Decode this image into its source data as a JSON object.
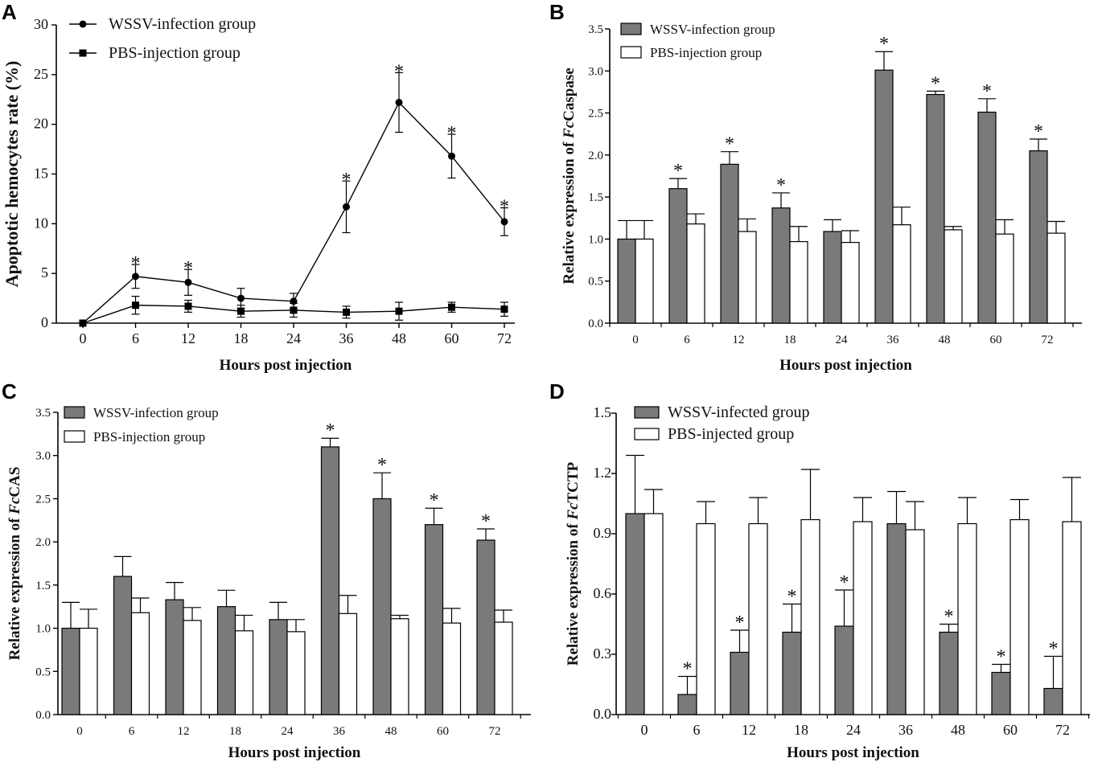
{
  "chart_data": [
    {
      "panel": "A",
      "type": "line",
      "categories": [
        "0",
        "6",
        "12",
        "18",
        "24",
        "36",
        "48",
        "60",
        "72"
      ],
      "series": [
        {
          "name": "WSSV-infection group",
          "marker": "circle",
          "values": [
            0,
            4.7,
            4.1,
            2.5,
            2.2,
            11.7,
            22.2,
            16.8,
            10.2
          ],
          "errors": [
            0,
            1.2,
            1.3,
            1.0,
            0.8,
            2.6,
            3.0,
            2.2,
            1.4
          ],
          "significant": [
            false,
            true,
            true,
            false,
            false,
            true,
            true,
            true,
            true
          ]
        },
        {
          "name": "PBS-injection group",
          "marker": "square",
          "values": [
            0,
            1.8,
            1.7,
            1.2,
            1.3,
            1.1,
            1.2,
            1.6,
            1.4
          ],
          "errors": [
            0,
            0.9,
            0.6,
            0.6,
            0.7,
            0.6,
            0.9,
            0.5,
            0.7
          ]
        }
      ],
      "title": "",
      "xlabel": "Hours post injection",
      "ylabel": "Apoptotic hemocytes rate (%)",
      "ylim": [
        0,
        30
      ],
      "yticks": [
        "0",
        "5",
        "10",
        "15",
        "20",
        "25",
        "30"
      ],
      "legend_position": "top-left",
      "grid": false
    },
    {
      "panel": "B",
      "type": "bar",
      "categories": [
        "0",
        "6",
        "12",
        "18",
        "24",
        "36",
        "48",
        "60",
        "72"
      ],
      "series": [
        {
          "name": "WSSV-infection group",
          "color": "#7a7a7a",
          "values": [
            1.0,
            1.6,
            1.89,
            1.37,
            1.09,
            3.01,
            2.72,
            2.51,
            2.05
          ],
          "errors": [
            0.22,
            0.12,
            0.15,
            0.18,
            0.14,
            0.22,
            0.04,
            0.16,
            0.14
          ],
          "significant": [
            false,
            true,
            true,
            true,
            false,
            true,
            true,
            true,
            true
          ]
        },
        {
          "name": "PBS-injection group",
          "color": "#ffffff",
          "values": [
            1.0,
            1.18,
            1.09,
            0.97,
            0.96,
            1.17,
            1.11,
            1.06,
            1.07
          ],
          "errors": [
            0.22,
            0.12,
            0.15,
            0.18,
            0.14,
            0.21,
            0.04,
            0.17,
            0.14
          ]
        }
      ],
      "title": "",
      "xlabel": "Hours post injection",
      "ylabel_prefix": "Relative expression of ",
      "ylabel_gene_italic": "Fc",
      "ylabel_gene": "Caspase",
      "ylim": [
        0,
        3.5
      ],
      "yticks": [
        "0.0",
        "0.5",
        "1.0",
        "1.5",
        "2.0",
        "2.5",
        "3.0",
        "3.5"
      ],
      "legend_position": "top-left",
      "grid": false
    },
    {
      "panel": "C",
      "type": "bar",
      "categories": [
        "0",
        "6",
        "12",
        "18",
        "24",
        "36",
        "48",
        "60",
        "72"
      ],
      "series": [
        {
          "name": "WSSV-infection group",
          "color": "#7a7a7a",
          "values": [
            1.0,
            1.6,
            1.33,
            1.25,
            1.1,
            3.1,
            2.5,
            2.2,
            2.02
          ],
          "errors": [
            0.3,
            0.23,
            0.2,
            0.19,
            0.2,
            0.1,
            0.3,
            0.19,
            0.13
          ],
          "significant": [
            false,
            false,
            false,
            false,
            false,
            true,
            true,
            true,
            true
          ]
        },
        {
          "name": "PBS-injection group",
          "color": "#ffffff",
          "values": [
            1.0,
            1.18,
            1.09,
            0.97,
            0.96,
            1.17,
            1.11,
            1.06,
            1.07
          ],
          "errors": [
            0.22,
            0.17,
            0.15,
            0.18,
            0.14,
            0.21,
            0.04,
            0.17,
            0.14
          ]
        }
      ],
      "title": "",
      "xlabel": "Hours post injection",
      "ylabel_prefix": "Relative expression of ",
      "ylabel_gene_italic": "Fc",
      "ylabel_gene": "CAS",
      "ylim": [
        0,
        3.5
      ],
      "yticks": [
        "0.0",
        "0.5",
        "1.0",
        "1.5",
        "2.0",
        "2.5",
        "3.0",
        "3.5"
      ],
      "legend_position": "top-left",
      "grid": false
    },
    {
      "panel": "D",
      "type": "bar",
      "categories": [
        "0",
        "6",
        "12",
        "18",
        "24",
        "36",
        "48",
        "60",
        "72"
      ],
      "series": [
        {
          "name": "WSSV-infected group",
          "color": "#7a7a7a",
          "values": [
            1.0,
            0.1,
            0.31,
            0.41,
            0.44,
            0.95,
            0.41,
            0.21,
            0.13
          ],
          "errors": [
            0.29,
            0.09,
            0.11,
            0.14,
            0.18,
            0.16,
            0.04,
            0.04,
            0.16
          ],
          "significant": [
            false,
            true,
            true,
            true,
            true,
            false,
            true,
            true,
            true
          ]
        },
        {
          "name": "PBS-injected group",
          "color": "#ffffff",
          "values": [
            1.0,
            0.95,
            0.95,
            0.97,
            0.96,
            0.92,
            0.95,
            0.97,
            0.96
          ],
          "errors": [
            0.12,
            0.11,
            0.13,
            0.25,
            0.12,
            0.14,
            0.13,
            0.1,
            0.22
          ]
        }
      ],
      "title": "",
      "xlabel": "Hours post injection",
      "ylabel_prefix": "Relative expression of ",
      "ylabel_gene_italic": "Fc",
      "ylabel_gene": "TCTP",
      "ylim": [
        0,
        1.5
      ],
      "yticks": [
        "0.0",
        "0.3",
        "0.6",
        "0.9",
        "1.2",
        "1.5"
      ],
      "legend_position": "top-left",
      "grid": false
    }
  ],
  "annotation": {
    "significance_marker": "*"
  }
}
